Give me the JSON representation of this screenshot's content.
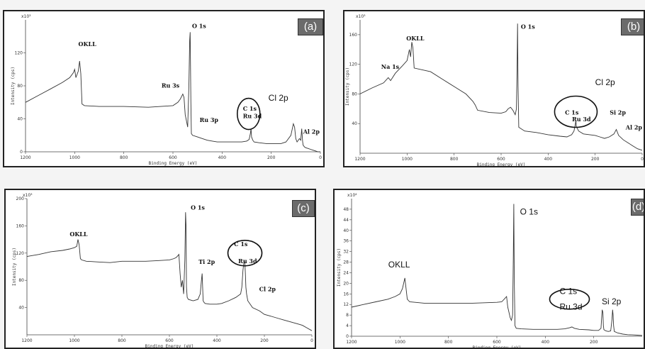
{
  "chart_data": [
    {
      "panel": "(a)",
      "type": "line",
      "xlabel": "Binding Energy (eV)",
      "ylabel": "Intensity (cps)",
      "y_multiplier": "x10³",
      "xlim": [
        1200,
        0
      ],
      "ylim": [
        0,
        160
      ],
      "xticks": [
        1200,
        1000,
        800,
        600,
        400,
        200,
        0
      ],
      "yticks": [
        0,
        40,
        80,
        120
      ],
      "x": [
        1200,
        1150,
        1100,
        1050,
        1020,
        1005,
        1000,
        995,
        985,
        980,
        975,
        970,
        960,
        900,
        800,
        700,
        600,
        580,
        570,
        560,
        555,
        550,
        540,
        535,
        532,
        530,
        527,
        525,
        520,
        500,
        480,
        460,
        440,
        420,
        400,
        380,
        360,
        340,
        320,
        300,
        290,
        285,
        282,
        280,
        275,
        270,
        250,
        220,
        200,
        180,
        160,
        140,
        120,
        110,
        105,
        100,
        95,
        90,
        85,
        80,
        76,
        74,
        72,
        70,
        65,
        60,
        50,
        40,
        30,
        20,
        10,
        0
      ],
      "y": [
        60,
        68,
        76,
        84,
        90,
        96,
        100,
        90,
        98,
        110,
        95,
        58,
        56,
        55,
        55,
        54,
        56,
        60,
        64,
        70,
        66,
        45,
        30,
        80,
        135,
        145,
        60,
        22,
        20,
        18,
        16,
        14,
        13,
        12,
        12,
        12,
        12,
        12,
        12,
        13,
        15,
        22,
        28,
        18,
        14,
        12,
        11,
        10,
        10,
        10,
        10,
        12,
        20,
        34,
        30,
        16,
        12,
        14,
        16,
        14,
        28,
        20,
        12,
        8,
        6,
        5,
        4,
        3,
        2,
        1,
        0,
        0
      ],
      "annotations": [
        "OKLL",
        "O 1s",
        "Ru 3s",
        "Ru 3p",
        "C 1s",
        "Ru 3d",
        "Cl 2p",
        "Al 2p"
      ]
    },
    {
      "panel": "(b)",
      "type": "line",
      "xlabel": "Binding Energy (eV)",
      "ylabel": "Intensity (cps)",
      "y_multiplier": "x10³",
      "xlim": [
        1200,
        0
      ],
      "ylim": [
        0,
        180
      ],
      "xticks": [
        1200,
        1000,
        800,
        600,
        400,
        200,
        0
      ],
      "yticks": [
        40,
        80,
        120,
        160
      ],
      "x": [
        1200,
        1150,
        1100,
        1080,
        1075,
        1070,
        1050,
        1020,
        1000,
        990,
        985,
        980,
        975,
        970,
        900,
        850,
        800,
        750,
        720,
        710,
        700,
        650,
        600,
        580,
        570,
        560,
        550,
        540,
        535,
        532,
        530,
        528,
        525,
        500,
        450,
        400,
        350,
        320,
        300,
        290,
        285,
        282,
        280,
        270,
        250,
        200,
        180,
        160,
        140,
        120,
        110,
        100,
        80,
        60,
        40,
        20,
        0
      ],
      "y": [
        80,
        88,
        95,
        102,
        100,
        98,
        108,
        118,
        125,
        140,
        130,
        150,
        142,
        115,
        110,
        100,
        90,
        80,
        70,
        65,
        58,
        55,
        54,
        56,
        60,
        62,
        58,
        52,
        60,
        120,
        175,
        90,
        35,
        30,
        28,
        25,
        23,
        22,
        25,
        30,
        38,
        44,
        36,
        30,
        26,
        24,
        22,
        20,
        22,
        26,
        32,
        24,
        18,
        14,
        10,
        6,
        4
      ],
      "annotations": [
        "Na 1s",
        "OKLL",
        "O 1s",
        "Cl 2p",
        "C 1s",
        "Ru 3d",
        "Si 2p",
        "Al 2p"
      ]
    },
    {
      "panel": "(c)",
      "type": "line",
      "xlabel": "Binding Energy (eV)",
      "ylabel": "Intensity (cps)",
      "y_multiplier": "x10³",
      "xlim": [
        1200,
        0
      ],
      "ylim": [
        0,
        200
      ],
      "xticks": [
        1200,
        1000,
        800,
        600,
        400,
        200,
        0
      ],
      "yticks": [
        40,
        80,
        120,
        160,
        200
      ],
      "x": [
        1200,
        1150,
        1100,
        1050,
        1020,
        1000,
        990,
        985,
        980,
        975,
        970,
        950,
        900,
        850,
        800,
        750,
        700,
        650,
        600,
        580,
        570,
        560,
        555,
        550,
        545,
        540,
        535,
        532,
        530,
        528,
        525,
        520,
        500,
        480,
        470,
        465,
        462,
        460,
        458,
        455,
        450,
        430,
        400,
        380,
        350,
        320,
        300,
        295,
        290,
        285,
        282,
        280,
        278,
        275,
        270,
        250,
        220,
        200,
        180,
        160,
        140,
        120,
        100,
        80,
        60,
        40,
        20,
        0
      ],
      "y": [
        115,
        118,
        122,
        124,
        126,
        128,
        130,
        140,
        132,
        112,
        110,
        108,
        107,
        106,
        108,
        108,
        108,
        109,
        110,
        112,
        114,
        118,
        90,
        70,
        80,
        60,
        110,
        180,
        160,
        70,
        55,
        52,
        50,
        52,
        60,
        80,
        90,
        70,
        50,
        48,
        46,
        45,
        45,
        46,
        50,
        55,
        60,
        70,
        95,
        110,
        105,
        90,
        70,
        60,
        50,
        40,
        35,
        30,
        28,
        26,
        24,
        22,
        20,
        18,
        16,
        14,
        10,
        6
      ],
      "annotations": [
        "OKLL",
        "O 1s",
        "Ti 2p",
        "C 1s",
        "Ru 3d",
        "Cl 2p"
      ]
    },
    {
      "panel": "(d)",
      "type": "line",
      "xlabel": "Binding Energy (eV)",
      "ylabel": "Intensity (cps)",
      "y_multiplier": "x10⁴",
      "xlim": [
        1200,
        0
      ],
      "ylim": [
        0,
        52
      ],
      "xticks": [
        1200,
        1000,
        800,
        600,
        400,
        200
      ],
      "yticks": [
        0,
        4,
        8,
        12,
        16,
        20,
        24,
        28,
        32,
        36,
        40,
        44,
        48
      ],
      "x": [
        1200,
        1150,
        1100,
        1050,
        1020,
        1000,
        990,
        985,
        980,
        975,
        970,
        960,
        900,
        800,
        700,
        600,
        580,
        570,
        560,
        555,
        550,
        545,
        540,
        535,
        532,
        530,
        528,
        525,
        520,
        500,
        450,
        400,
        350,
        320,
        300,
        290,
        280,
        260,
        220,
        200,
        180,
        170,
        165,
        162,
        160,
        158,
        150,
        140,
        130,
        125,
        122,
        120,
        118,
        115,
        100,
        80,
        60,
        40,
        20,
        0
      ],
      "y": [
        11,
        12,
        13,
        14,
        15,
        16,
        18,
        20,
        22,
        18,
        14,
        13,
        12.5,
        12.5,
        12.5,
        12.8,
        13,
        14,
        15,
        11,
        9,
        7,
        6,
        8,
        30,
        50,
        20,
        4,
        3,
        2.8,
        2.6,
        2.6,
        2.6,
        2.8,
        3.2,
        3.5,
        3,
        2.6,
        2.4,
        2.2,
        2.2,
        3,
        10,
        9,
        4,
        2.5,
        2,
        1.8,
        2,
        6,
        10,
        8,
        4,
        1.8,
        1.2,
        0.8,
        0.6,
        0.5,
        0.4,
        0.3
      ],
      "annotations": [
        "O 1s",
        "OKLL",
        "C 1s",
        "Ru 3d",
        "Si 2p"
      ]
    }
  ]
}
